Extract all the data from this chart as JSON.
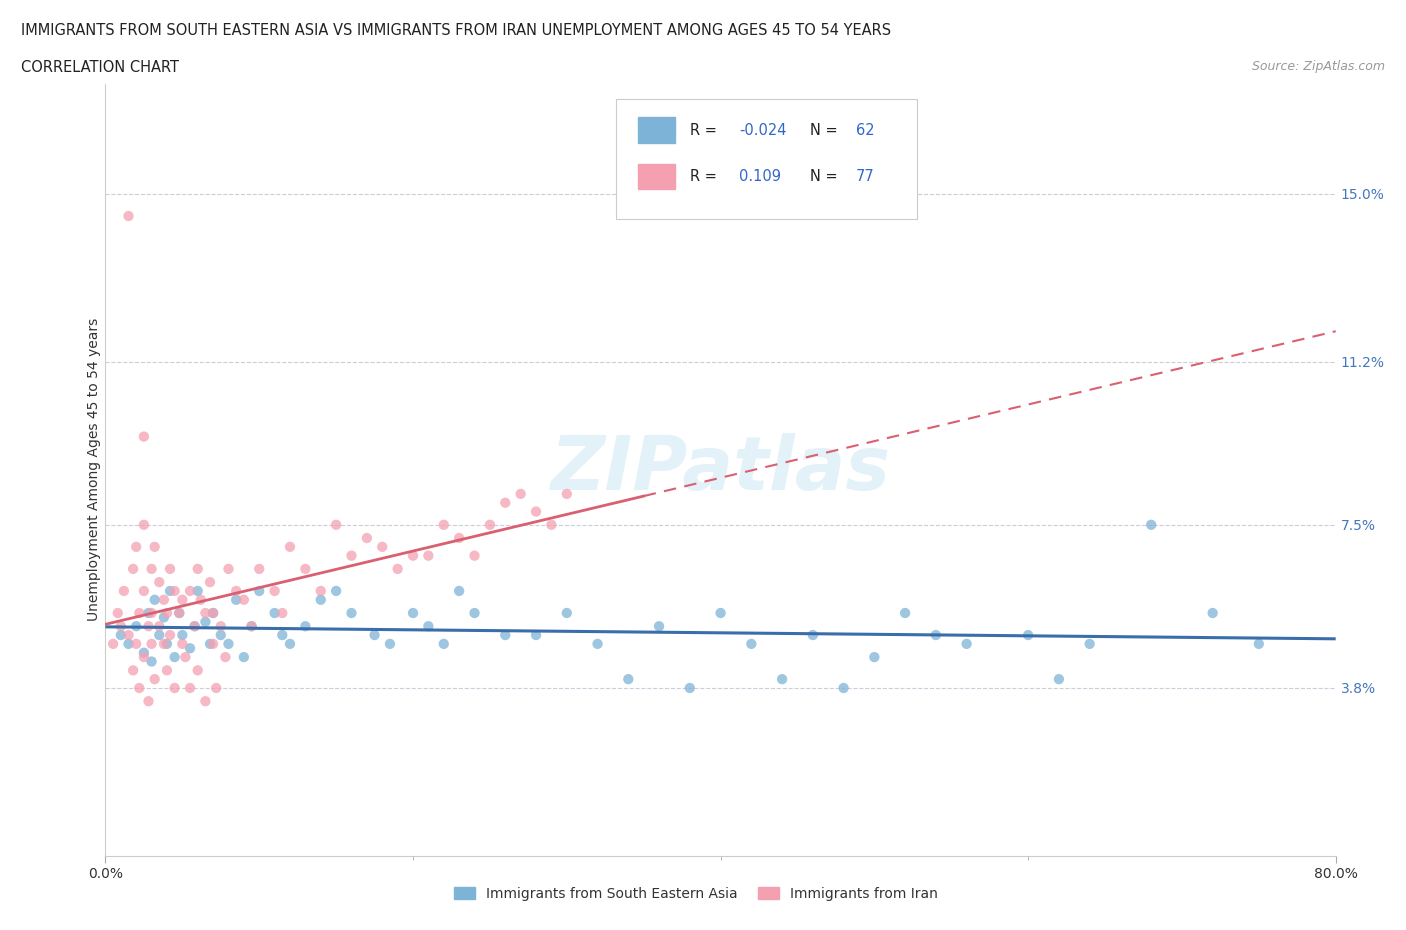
{
  "title_line1": "IMMIGRANTS FROM SOUTH EASTERN ASIA VS IMMIGRANTS FROM IRAN UNEMPLOYMENT AMONG AGES 45 TO 54 YEARS",
  "title_line2": "CORRELATION CHART",
  "source_text": "Source: ZipAtlas.com",
  "ylabel": "Unemployment Among Ages 45 to 54 years",
  "xlim": [
    0.0,
    0.8
  ],
  "ylim": [
    0.0,
    0.175
  ],
  "yticks": [
    0.038,
    0.075,
    0.112,
    0.15
  ],
  "ytick_labels": [
    "3.8%",
    "7.5%",
    "11.2%",
    "15.0%"
  ],
  "xtick_labels": [
    "0.0%",
    "80.0%"
  ],
  "xticks": [
    0.0,
    0.8
  ],
  "color_sea": "#7EB3D8",
  "color_iran": "#F4A0B0",
  "color_sea_line": "#3A6EAA",
  "color_iran_line": "#D96070",
  "legend1_label": "Immigrants from South Eastern Asia",
  "legend2_label": "Immigrants from Iran",
  "watermark": "ZIPatlas"
}
